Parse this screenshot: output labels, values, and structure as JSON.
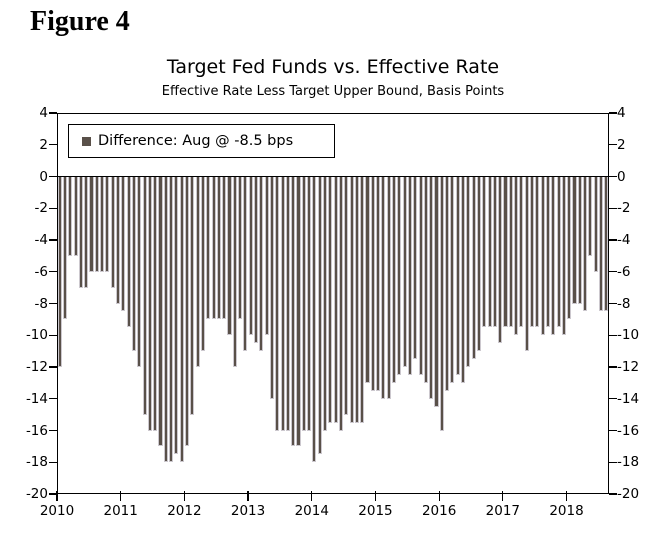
{
  "figure_label": "Figure 4",
  "chart": {
    "title": "Target Fed Funds vs. Effective Rate",
    "subtitle": "Effective Rate Less Target Upper Bound, Basis Points",
    "legend": {
      "label": "Difference: Aug @ -8.5 bps",
      "marker_color": "#595049"
    }
  },
  "chart_data": {
    "type": "bar",
    "title": "Target Fed Funds vs. Effective Rate",
    "subtitle": "Effective Rate Less Target Upper Bound, Basis Points",
    "ylabel": "Basis Points",
    "ylim": [
      -20,
      4
    ],
    "y_ticks": [
      4,
      2,
      0,
      -2,
      -4,
      -6,
      -8,
      -10,
      -12,
      -14,
      -16,
      -18,
      -20
    ],
    "x_tick_labels": [
      "2010",
      "2011",
      "2012",
      "2013",
      "2014",
      "2015",
      "2016",
      "2017",
      "2018"
    ],
    "start_year": 2010,
    "start_month": "Jan",
    "end_month": "Aug 2018",
    "grid": false,
    "legend_position": "top-left",
    "bar_color": "#595049",
    "bar_edge_color": "#ccc8ce",
    "axis_color": "#000000",
    "series": [
      {
        "name": "Difference",
        "values": [
          -12,
          -9,
          -5,
          -5,
          -7,
          -7,
          -6,
          -6,
          -6,
          -6,
          -7,
          -8,
          -8.5,
          -9.5,
          -11,
          -12,
          -15,
          -16,
          -16,
          -17,
          -18,
          -18,
          -17.5,
          -18,
          -17,
          -15,
          -12,
          -11,
          -9,
          -9,
          -9,
          -9,
          -10,
          -12,
          -9,
          -11,
          -10,
          -10.5,
          -11,
          -10,
          -14,
          -16,
          -16,
          -16,
          -17,
          -17,
          -16,
          -16,
          -18,
          -17.5,
          -16,
          -15.5,
          -15.5,
          -16,
          -15,
          -15.5,
          -15.5,
          -15.5,
          -13,
          -13.5,
          -13.5,
          -14,
          -14,
          -13,
          -12.5,
          -12,
          -12.5,
          -11.5,
          -12.5,
          -13,
          -14,
          -14.5,
          -16,
          -13.5,
          -13,
          -12.5,
          -13,
          -12,
          -11.5,
          -11,
          -9.5,
          -9.5,
          -9.5,
          -10.5,
          -9.5,
          -9.5,
          -10,
          -9.5,
          -11,
          -9.5,
          -9.5,
          -10,
          -9.5,
          -10,
          -9.5,
          -10,
          -9,
          -8,
          -8,
          -8.5,
          -5,
          -6,
          -8.5,
          -8.5
        ]
      }
    ]
  }
}
